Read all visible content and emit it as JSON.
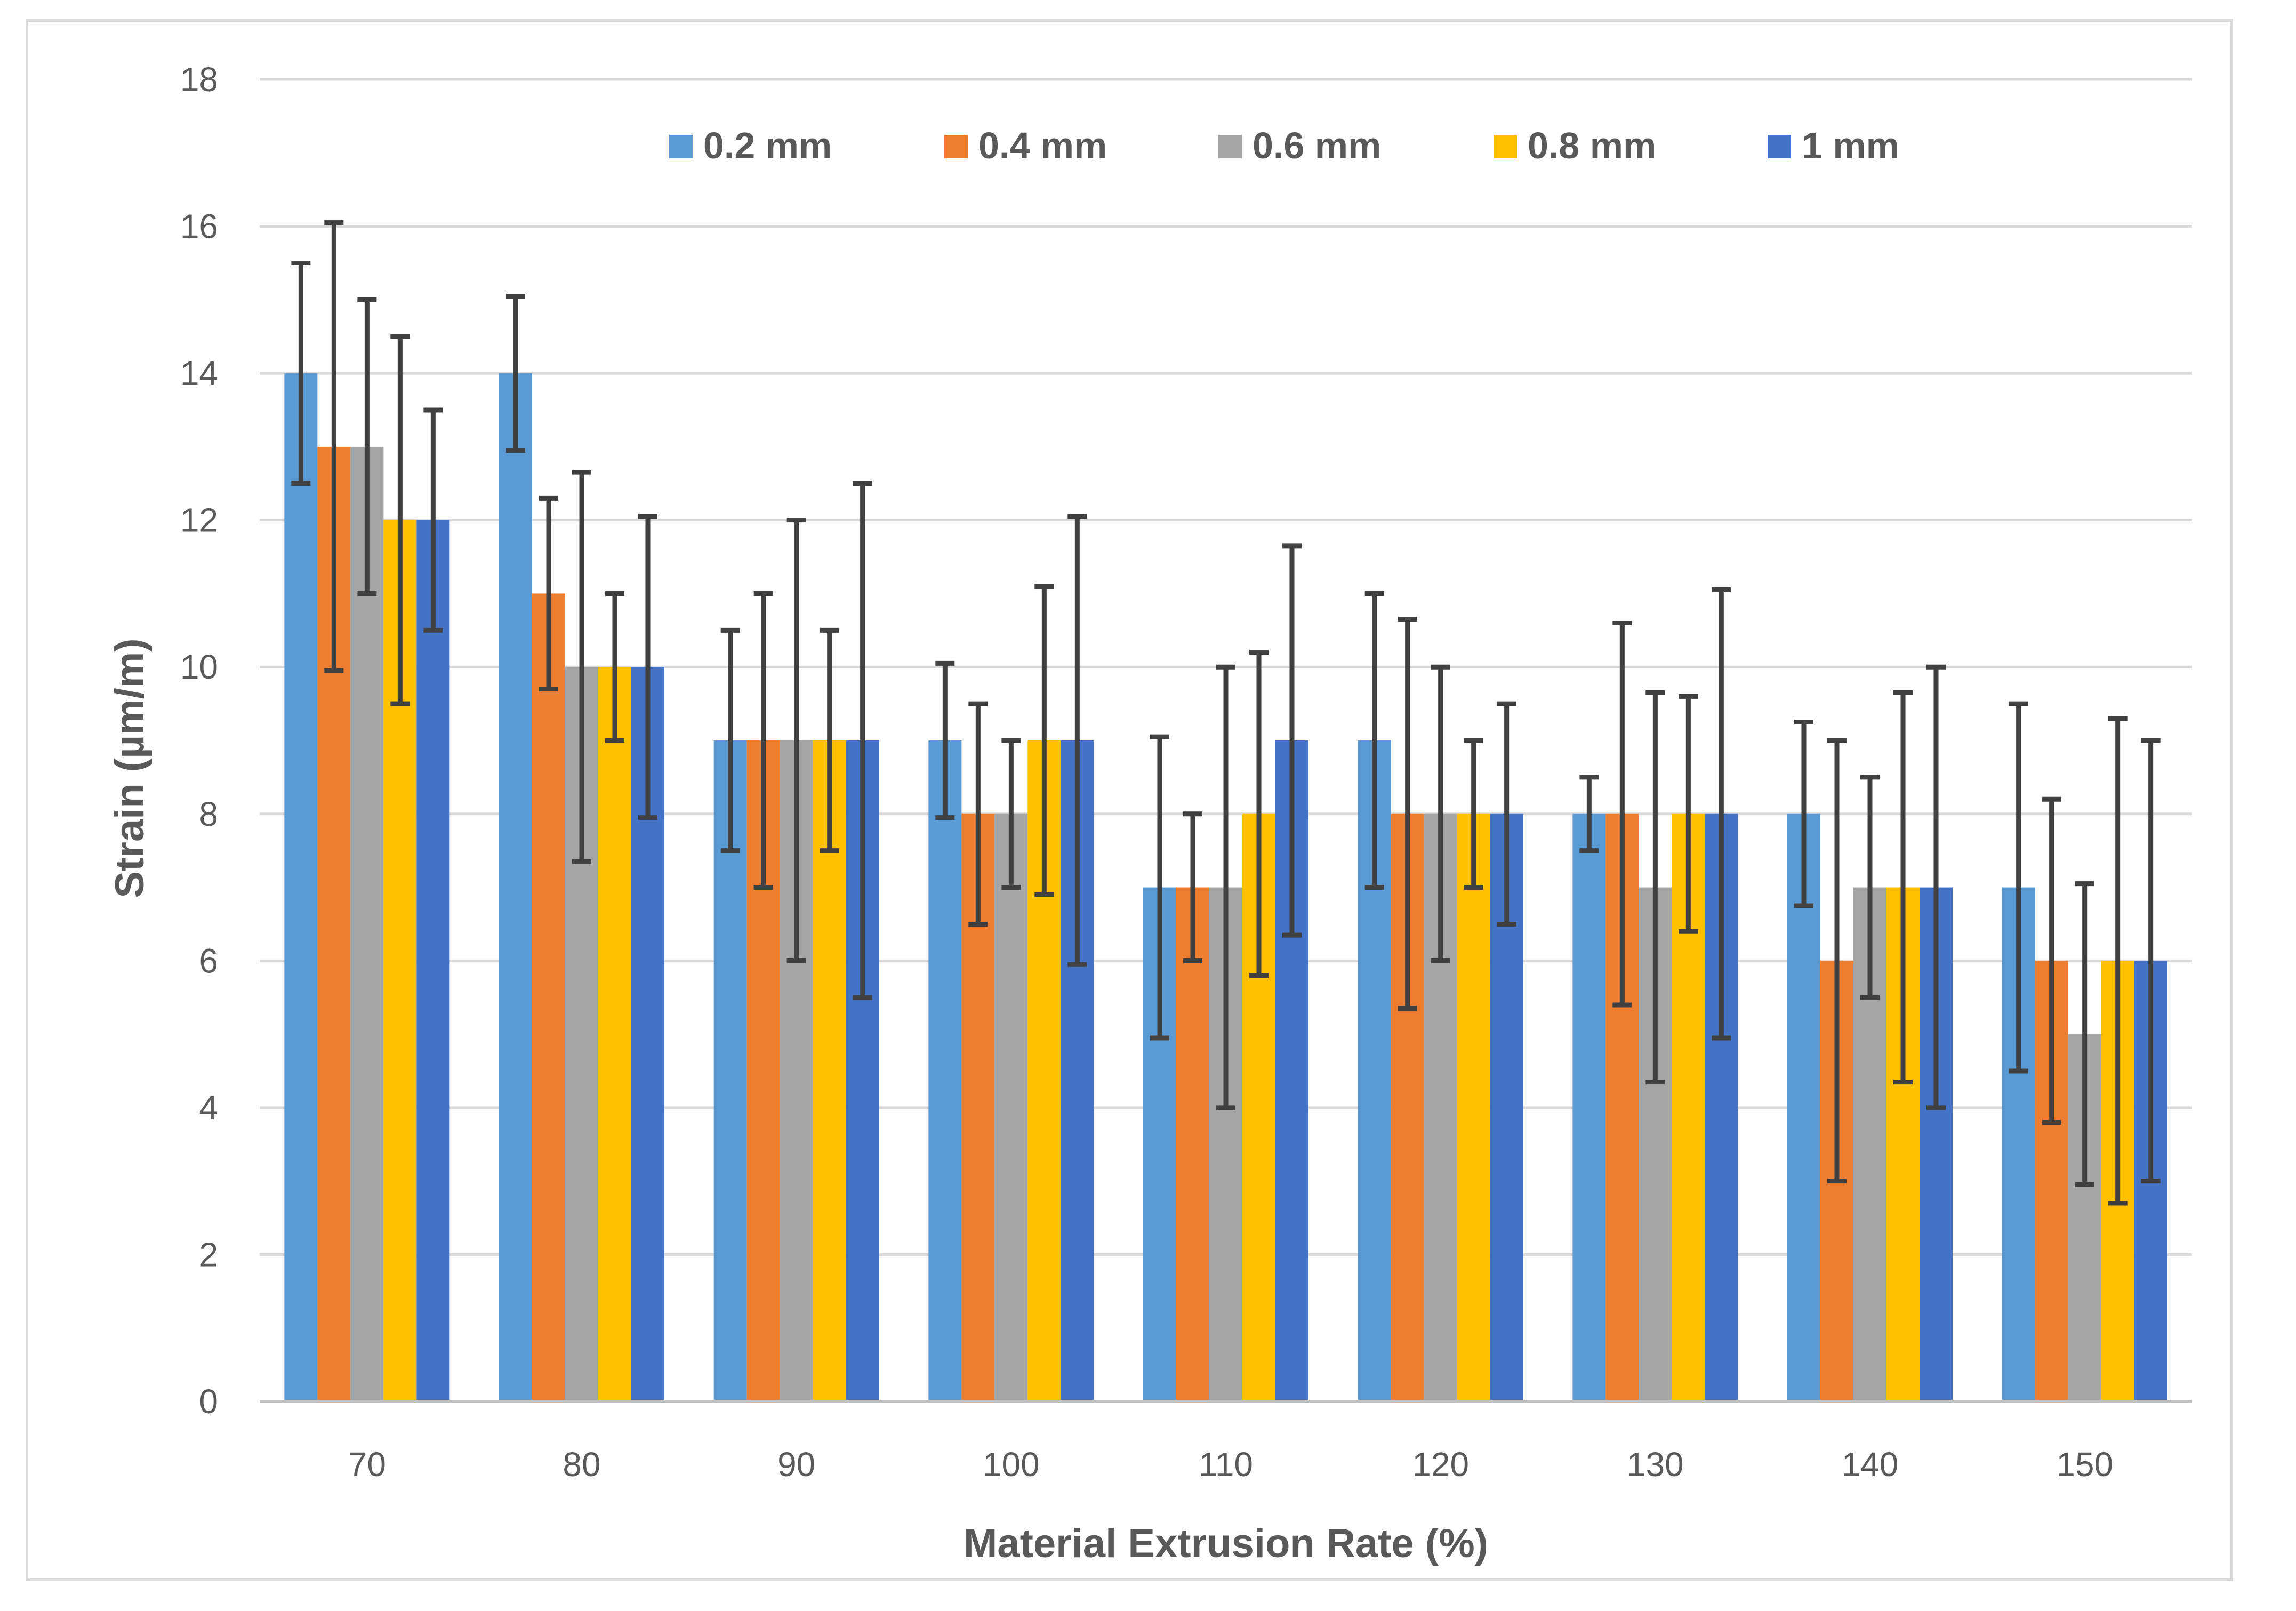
{
  "chart_data": {
    "type": "bar",
    "title": "",
    "xlabel": "Material Extrusion Rate (%)",
    "ylabel": "Strain (µm/m)",
    "ylim": [
      0,
      18
    ],
    "yticks": [
      "0",
      "2",
      "4",
      "6",
      "8",
      "10",
      "12",
      "14",
      "16",
      "18"
    ],
    "grid": true,
    "legend_position": "top",
    "categories": [
      "70",
      "80",
      "90",
      "100",
      "110",
      "120",
      "130",
      "140",
      "150"
    ],
    "series": [
      {
        "name": "0.2 mm",
        "color": "#5b9bd5",
        "values": [
          14,
          14,
          9,
          9,
          7,
          9,
          8,
          8,
          7
        ],
        "errors": [
          1.5,
          1.05,
          1.5,
          1.05,
          2.05,
          2.0,
          0.5,
          1.25,
          2.5
        ]
      },
      {
        "name": "0.4 mm",
        "color": "#ed7d31",
        "values": [
          13,
          11,
          9,
          8,
          7,
          8,
          8,
          6,
          6
        ],
        "errors": [
          3.05,
          1.3,
          2.0,
          1.5,
          1.0,
          2.65,
          2.6,
          3.0,
          2.2
        ]
      },
      {
        "name": "0.6 mm",
        "color": "#a5a5a5",
        "values": [
          13,
          10,
          9,
          8,
          7,
          8,
          7,
          7,
          5
        ],
        "errors": [
          2.0,
          2.65,
          3.0,
          1.0,
          3.0,
          2.0,
          2.65,
          1.5,
          2.05
        ]
      },
      {
        "name": "0.8 mm",
        "color": "#ffc000",
        "values": [
          12,
          10,
          9,
          9,
          8,
          8,
          8,
          7,
          6
        ],
        "errors": [
          2.5,
          1.0,
          1.5,
          2.1,
          2.2,
          1.0,
          1.6,
          2.65,
          3.3
        ]
      },
      {
        "name": "1 mm",
        "color": "#4472c4",
        "values": [
          12,
          10,
          9,
          9,
          9,
          8,
          8,
          7,
          6
        ],
        "errors": [
          1.5,
          2.05,
          3.5,
          3.05,
          2.65,
          1.5,
          3.05,
          3.0,
          3.0
        ]
      }
    ],
    "colors": {
      "grid": "#d9d9d9",
      "axis": "#bfbfbf",
      "error_bar": "#404040",
      "text": "#595959"
    }
  }
}
